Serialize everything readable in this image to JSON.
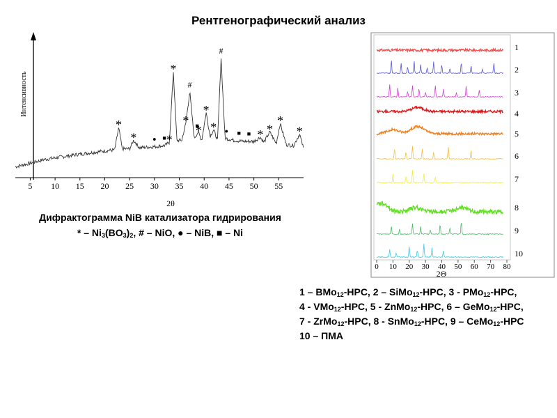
{
  "slide": {
    "title": "Рентгенографический  анализ"
  },
  "left_caption": {
    "line1": "Дифрактограмма NiB катализатора гидрирования",
    "legend_parts": [
      {
        "t": "* – Ni"
      },
      {
        "t": "3",
        "sub": true
      },
      {
        "t": "(BO"
      },
      {
        "t": "3",
        "sub": true
      },
      {
        "t": ")"
      },
      {
        "t": "2",
        "sub": true
      },
      {
        "t": ", # – NiO, ● – NiB, ■ – Ni"
      }
    ]
  },
  "right_legend": {
    "lines": [
      [
        {
          "t": "1 – BMo"
        },
        {
          "t": "12",
          "sub": true
        },
        {
          "t": "-HPC, 2 – SiMo"
        },
        {
          "t": "12",
          "sub": true
        },
        {
          "t": "-HPC, 3 - PMo"
        },
        {
          "t": "12",
          "sub": true
        },
        {
          "t": "-HPC,"
        }
      ],
      [
        {
          "t": "4 - VMo"
        },
        {
          "t": "12",
          "sub": true
        },
        {
          "t": "-HPC, 5 - ZnMo"
        },
        {
          "t": "12",
          "sub": true
        },
        {
          "t": "-HPC, 6 – GeMo"
        },
        {
          "t": "12",
          "sub": true
        },
        {
          "t": "-HPC,"
        }
      ],
      [
        {
          "t": "7 - ZrMo"
        },
        {
          "t": "12",
          "sub": true
        },
        {
          "t": "-HPC, 8 - SnMo"
        },
        {
          "t": "12",
          "sub": true
        },
        {
          "t": "-HPC, 9 – CeMo"
        },
        {
          "t": "12",
          "sub": true
        },
        {
          "t": "-HPC"
        }
      ],
      [
        {
          "t": " 10 – ПМА"
        }
      ]
    ]
  },
  "chart_data": [
    {
      "type": "line",
      "ylabel": "Интенсивность",
      "xlabel": "2θ",
      "xlim": [
        2,
        60
      ],
      "xticks": [
        5,
        10,
        15,
        20,
        25,
        30,
        35,
        40,
        45,
        50,
        55
      ],
      "grid": false,
      "series": [
        {
          "x": [
            2,
            8,
            15,
            20,
            22,
            22.8,
            23.5,
            25,
            25.8,
            27,
            30,
            32,
            33,
            33.8,
            34.5,
            35.5,
            36.3,
            37.1,
            38,
            38.8,
            39.5,
            40.4,
            41.2,
            41.9,
            42.7,
            43.4,
            44.2,
            46,
            48,
            50,
            51.3,
            52,
            53.2,
            54.5,
            55.3,
            56.5,
            58,
            59.2,
            60
          ],
          "y": [
            5,
            12,
            17,
            20,
            21,
            42,
            22,
            22,
            30,
            23,
            24,
            25,
            28,
            95,
            30,
            30,
            46,
            76,
            32,
            38,
            30,
            56,
            34,
            40,
            30,
            108,
            32,
            30,
            29,
            29,
            33,
            28,
            38,
            27,
            46,
            26,
            25,
            36,
            22
          ]
        }
      ],
      "annotations": [
        {
          "x": 22.8,
          "label": "*"
        },
        {
          "x": 25.8,
          "label": "*"
        },
        {
          "x": 30.0,
          "label": "●"
        },
        {
          "x": 32.0,
          "label": "■"
        },
        {
          "x": 33.0,
          "label": "*"
        },
        {
          "x": 33.8,
          "label": "*"
        },
        {
          "x": 36.3,
          "label": "*"
        },
        {
          "x": 37.1,
          "label": "#"
        },
        {
          "x": 38.6,
          "label": "■"
        },
        {
          "x": 38.9,
          "label": "*"
        },
        {
          "x": 40.4,
          "label": "*"
        },
        {
          "x": 41.9,
          "label": "*"
        },
        {
          "x": 43.4,
          "label": "#"
        },
        {
          "x": 44.5,
          "label": "●"
        },
        {
          "x": 47.0,
          "label": "■"
        },
        {
          "x": 49.0,
          "label": "■"
        },
        {
          "x": 51.3,
          "label": "*"
        },
        {
          "x": 53.2,
          "label": "*"
        },
        {
          "x": 55.3,
          "label": "*"
        },
        {
          "x": 59.2,
          "label": "*"
        }
      ]
    },
    {
      "type": "line",
      "xlabel": "2Θ",
      "xlim": [
        0,
        80
      ],
      "xticks": [
        0,
        10,
        20,
        30,
        40,
        50,
        60,
        70,
        80
      ],
      "grid": false,
      "series": [
        {
          "name": "1",
          "color": "#f05050",
          "style": "amorphous",
          "peaks": []
        },
        {
          "name": "2",
          "color": "#5555dd",
          "style": "crystalline",
          "peaks": [
            9,
            15,
            19,
            23,
            27,
            31,
            35,
            40,
            45,
            52,
            58,
            65,
            72
          ]
        },
        {
          "name": "3",
          "color": "#d040d0",
          "style": "crystalline",
          "peaks": [
            8,
            13,
            19,
            22,
            26,
            30,
            36,
            41,
            49,
            55,
            63
          ]
        },
        {
          "name": "4",
          "color": "#e01818",
          "style": "amorphous",
          "peaks": [
            25
          ]
        },
        {
          "name": "5",
          "color": "#f08020",
          "style": "amorphous",
          "peaks": [
            10,
            23,
            27
          ]
        },
        {
          "name": "6",
          "color": "#f5c040",
          "style": "crystalline",
          "peaks": [
            11,
            18,
            22,
            28,
            35,
            44,
            58
          ]
        },
        {
          "name": "7",
          "color": "#f0f030",
          "style": "crystalline",
          "peaks": [
            10,
            18,
            22,
            29,
            36
          ]
        },
        {
          "name": "8",
          "color": "#60e020",
          "style": "amorphous",
          "peaks": [
            5,
            24,
            52
          ]
        },
        {
          "name": "9",
          "color": "#40c060",
          "style": "crystalline",
          "peaks": [
            9,
            14,
            22,
            27,
            33,
            39,
            45,
            52
          ]
        },
        {
          "name": "10",
          "color": "#40c8e0",
          "style": "crystalline",
          "peaks": [
            8,
            12,
            20,
            25,
            29,
            34,
            41
          ]
        }
      ]
    }
  ]
}
